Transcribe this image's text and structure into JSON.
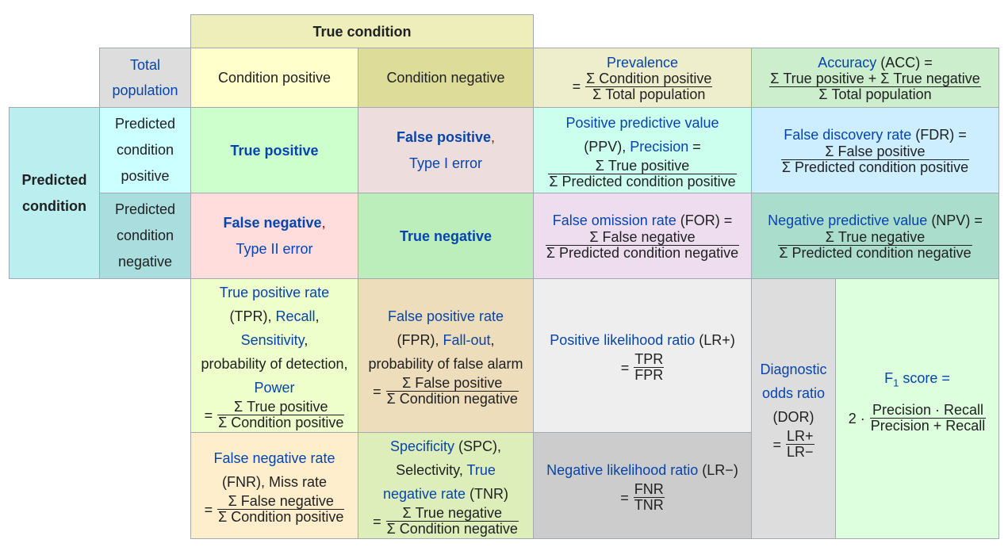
{
  "header": {
    "true_condition": "True condition",
    "predicted_condition": "Predicted condition"
  },
  "sym": {
    "eq": "=",
    "sum": "Σ",
    "two_dot": "2 ·",
    "dot": "·",
    "plus": "+"
  },
  "total_population": "Total population",
  "condition_positive": "Condition positive",
  "condition_negative": "Condition negative",
  "predicted_condition_positive": "Predicted condition positive",
  "predicted_condition_negative": "Predicted condition negative",
  "prevalence": {
    "label": "Prevalence",
    "num": "Σ Condition positive",
    "den": "Σ Total population"
  },
  "accuracy": {
    "label": "Accuracy",
    "abbr": "(ACC) =",
    "num": "Σ True positive + Σ True negative",
    "den": "Σ Total population"
  },
  "true_positive": "True positive",
  "false_positive": {
    "label": "False positive",
    "comma": ",",
    "sub": "Type I error"
  },
  "false_negative": {
    "label": "False negative",
    "comma": ",",
    "sub": "Type II error"
  },
  "true_negative": "True negative",
  "ppv": {
    "label": "Positive predictive value",
    "abbr": "(PPV),",
    "precision": "Precision",
    "eq": "=",
    "num": "Σ True positive",
    "den": "Σ Predicted condition positive"
  },
  "fdr": {
    "label": "False discovery rate",
    "abbr": "(FDR) =",
    "num": "Σ False positive",
    "den": "Σ Predicted condition positive"
  },
  "for": {
    "label": "False omission rate",
    "abbr": "(FOR) =",
    "num": "Σ False negative",
    "den": "Σ Predicted condition negative"
  },
  "npv": {
    "label": "Negative predictive value",
    "abbr": "(NPV) =",
    "num": "Σ True negative",
    "den": "Σ Predicted condition negative"
  },
  "tpr": {
    "label": "True positive rate",
    "abbr": "(TPR),",
    "recall": "Recall",
    "sep": ",",
    "sensitivity": "Sensitivity",
    "sep2": ",",
    "pod": "probability of detection,",
    "power": "Power",
    "num": "Σ True positive",
    "den": "Σ Condition positive"
  },
  "fpr": {
    "label": "False positive rate",
    "abbr": "(FPR),",
    "fallout": "Fall-out",
    "sep": ",",
    "pfa": "probability of false alarm",
    "num": "Σ False positive",
    "den": "Σ Condition negative"
  },
  "lrp": {
    "label": "Positive likelihood ratio",
    "abbr": "(LR+)",
    "num": "TPR",
    "den": "FPR"
  },
  "dor": {
    "label1": "Diagnostic",
    "label2": "odds ratio",
    "abbr": "(DOR)",
    "num": "LR+",
    "den": "LR−"
  },
  "f1": {
    "label": "F",
    "sub": "1",
    "rest": "score =",
    "num": "Precision · Recall",
    "den": "Precision + Recall"
  },
  "fnr": {
    "label": "False negative rate",
    "abbr": "(FNR), Miss rate",
    "num": "Σ False negative",
    "den": "Σ Condition positive"
  },
  "spc": {
    "label": "Specificity",
    "abbr": "(SPC),",
    "selectivity": "Selectivity,",
    "tnr1": "True",
    "tnr2": "negative rate",
    "tnr_abbr": "(TNR)",
    "num": "Σ True negative",
    "den": "Σ Condition negative"
  },
  "lrn": {
    "label": "Negative likelihood ratio",
    "abbr": "(LR−)",
    "num": "FNR",
    "den": "TNR"
  }
}
